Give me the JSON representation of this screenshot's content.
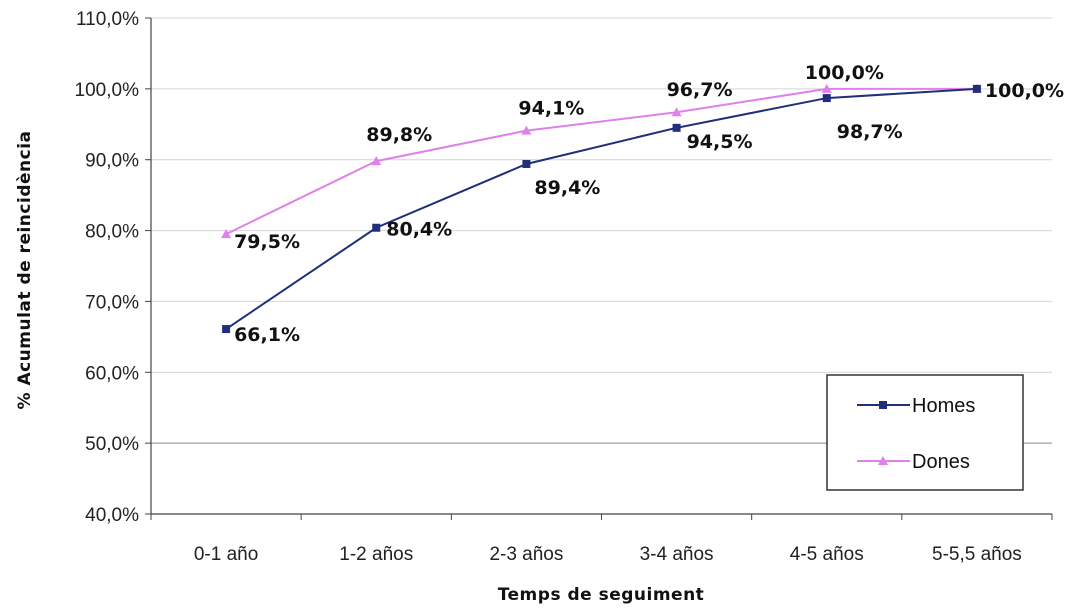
{
  "chart_data": {
    "type": "line",
    "xlabel": "Temps de seguiment",
    "ylabel": "% Acumulat de reincidència",
    "categories": [
      "0-1 año",
      "1-2 años",
      "2-3 años",
      "3-4 años",
      "4-5 años",
      "5-5,5 años"
    ],
    "ylim": [
      40,
      110
    ],
    "yticks": [
      40,
      50,
      60,
      70,
      80,
      90,
      100,
      110
    ],
    "ytick_labels": [
      "40,0%",
      "50,0%",
      "60,0%",
      "70,0%",
      "80,0%",
      "90,0%",
      "100,0%",
      "110,0%"
    ],
    "grid": true,
    "legend_position": "bottom-right",
    "series": [
      {
        "name": "Homes",
        "color": "#1f2f7a",
        "marker": "square",
        "values": [
          66.1,
          80.4,
          89.4,
          94.5,
          98.7,
          100.0
        ],
        "labels": [
          "66,1%",
          "80,4%",
          "89,4%",
          "94,5%",
          "98,7%",
          "100,0%"
        ]
      },
      {
        "name": "Dones",
        "color": "#e080ea",
        "marker": "triangle",
        "values": [
          79.5,
          89.8,
          94.1,
          96.7,
          100.0,
          100.0
        ],
        "labels": [
          "79,5%",
          "89,8%",
          "94,1%",
          "96,7%",
          "100,0%",
          "100,0%"
        ]
      }
    ]
  }
}
